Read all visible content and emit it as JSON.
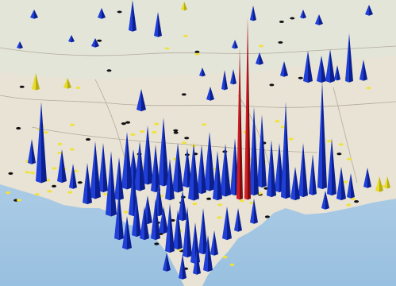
{
  "map": {
    "colors": {
      "sea": "#a9cbe6",
      "land": "#e9e5d8",
      "land_shade": "#ddd7c4",
      "border": "#b9b3a6",
      "spike_blue": "#1f3fd6",
      "spike_blue_dark": "#0c1f8f",
      "spike_red": "#d11e26",
      "spike_red_dark": "#7e0d10",
      "spike_yellow": "#e7dc2d",
      "dot_black": "#111111",
      "dot_yellow": "#f0e23a"
    },
    "legend": []
  }
}
